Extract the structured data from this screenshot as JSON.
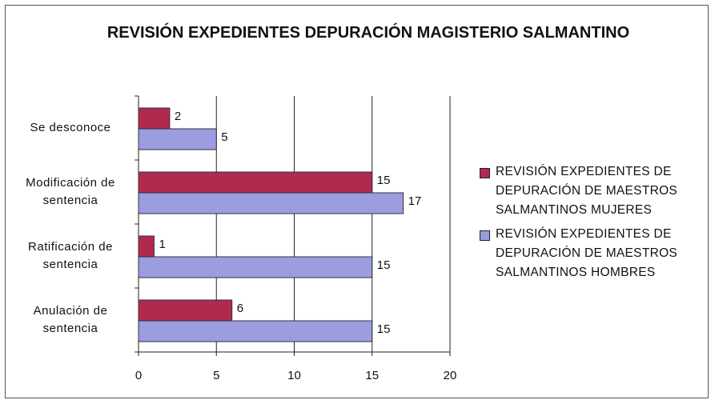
{
  "chart_data": {
    "type": "hbar",
    "title": "REVISIÓN EXPEDIENTES DEPURACIÓN MAGISTERIO SALMANTINO",
    "categories": [
      "Se desconoce",
      "Modificación de sentencia",
      "Ratificación de sentencia",
      "Anulación de sentencia"
    ],
    "series": [
      {
        "name": "REVISIÓN EXPEDIENTES DE DEPURACIÓN DE MAESTROS SALMANTINOS MUJERES",
        "color": "#b02a4f",
        "values": [
          2,
          15,
          1,
          6
        ]
      },
      {
        "name": "REVISIÓN EXPEDIENTES DE DEPURACIÓN DE MAESTROS SALMANTINOS HOMBRES",
        "color": "#9c9ce0",
        "values": [
          5,
          17,
          15,
          15
        ]
      }
    ],
    "xlim": [
      0,
      20
    ],
    "xticks": [
      0,
      5,
      10,
      15,
      20
    ],
    "grid": true,
    "legend": "right"
  }
}
